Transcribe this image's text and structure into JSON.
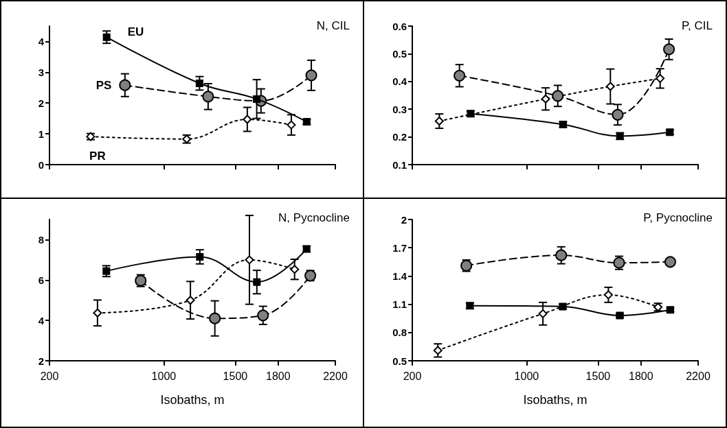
{
  "chart_data": [
    {
      "type": "line",
      "title": "N, CIL",
      "tick_labels": "y",
      "grid": false,
      "xlim": [
        200,
        2200
      ],
      "xticks": [
        200,
        1000,
        1500,
        1800,
        2200
      ],
      "ylim": [
        0,
        4.5
      ],
      "yticks": [
        0,
        1,
        2,
        3,
        4
      ],
      "series": [
        {
          "name": "EU",
          "color": "#000000",
          "marker": "square",
          "line_style": "solid",
          "x": [
            600,
            1250,
            1650,
            2000
          ],
          "values": [
            4.14,
            2.64,
            2.13,
            1.39
          ],
          "errors": [
            0.2,
            0.22,
            0.63,
            0.08
          ]
        },
        {
          "name": "PS",
          "color": "#808080",
          "marker": "circle",
          "line_style": "dashed",
          "x": [
            728,
            1310,
            1680,
            2032
          ],
          "values": [
            2.58,
            2.21,
            2.07,
            2.9
          ],
          "errors": [
            0.37,
            0.42,
            0.39,
            0.49
          ]
        },
        {
          "name": "PR",
          "color": "#ffffff",
          "marker": "diamond",
          "line_style": "dotted",
          "x": [
            488,
            1160,
            1584,
            1892
          ],
          "values": [
            0.91,
            0.83,
            1.47,
            1.29
          ],
          "errors": [
            0.1,
            0.13,
            0.39,
            0.33
          ]
        }
      ]
    },
    {
      "type": "line",
      "title": "P, CIL",
      "tick_labels": "y",
      "grid": false,
      "xlim": [
        200,
        2200
      ],
      "xticks": [
        200,
        1000,
        1500,
        1800,
        2200
      ],
      "ylim": [
        0.1,
        0.6
      ],
      "yticks": [
        0.1,
        0.2,
        0.3,
        0.4,
        0.5,
        0.6
      ],
      "series": [
        {
          "color": "#000000",
          "marker": "square",
          "line_style": "solid",
          "x": [
            608,
            1255,
            1653,
            2002
          ],
          "values": [
            0.284,
            0.245,
            0.203,
            0.217
          ],
          "errors": [
            0.01,
            0.01,
            0.012,
            0.008
          ]
        },
        {
          "color": "#808080",
          "marker": "circle",
          "line_style": "dashed",
          "x": [
            530,
            1218,
            1637,
            1996
          ],
          "values": [
            0.421,
            0.348,
            0.28,
            0.516
          ],
          "errors": [
            0.04,
            0.038,
            0.037,
            0.037
          ]
        },
        {
          "color": "#ffffff",
          "marker": "diamond",
          "line_style": "dotted",
          "x": [
            389,
            1133,
            1586,
            1934
          ],
          "values": [
            0.257,
            0.337,
            0.382,
            0.411
          ],
          "errors": [
            0.026,
            0.04,
            0.063,
            0.035
          ]
        }
      ]
    },
    {
      "type": "line",
      "title": "N, Pycnocline",
      "xlabel": "Isobaths, m",
      "grid": false,
      "xlim": [
        200,
        2200
      ],
      "xticks": [
        200,
        1000,
        1500,
        1800,
        2200
      ],
      "ylim": [
        2,
        9
      ],
      "yticks": [
        2,
        4,
        6,
        8
      ],
      "series": [
        {
          "color": "#000000",
          "marker": "square",
          "line_style": "solid",
          "x": [
            598,
            1252,
            1651,
            1999
          ],
          "values": [
            6.44,
            7.15,
            5.9,
            7.54
          ],
          "errors": [
            0.27,
            0.35,
            0.58,
            0.14
          ]
        },
        {
          "color": "#808080",
          "marker": "circle",
          "line_style": "dashed",
          "x": [
            838,
            1357,
            1694,
            2025
          ],
          "values": [
            5.97,
            4.1,
            4.25,
            6.22
          ],
          "errors": [
            0.29,
            0.87,
            0.45,
            0.25
          ]
        },
        {
          "color": "#ffffff",
          "marker": "diamond",
          "line_style": "dotted",
          "x": [
            536,
            1186,
            1599,
            1915
          ],
          "values": [
            4.37,
            5.0,
            7.0,
            6.53
          ],
          "errors": [
            0.64,
            0.93,
            2.2,
            0.5
          ]
        }
      ]
    },
    {
      "type": "line",
      "title": "P, Pycnocline",
      "xlabel": "Isobaths, m",
      "grid": false,
      "xlim": [
        200,
        2200
      ],
      "xticks": [
        200,
        1000,
        1500,
        1800,
        2200
      ],
      "ylim": [
        0.5,
        2
      ],
      "yticks": [
        0.5,
        0.8,
        1.1,
        1.4,
        1.7,
        2
      ],
      "series": [
        {
          "color": "#000000",
          "marker": "square",
          "line_style": "solid",
          "x": [
            603,
            1253,
            1652,
            2005
          ],
          "values": [
            1.084,
            1.076,
            0.98,
            1.04
          ],
          "errors": [
            0.03,
            0.025,
            0.02,
            0.02
          ]
        },
        {
          "color": "#808080",
          "marker": "circle",
          "line_style": "dashed",
          "x": [
            578,
            1242,
            1647,
            2005
          ],
          "values": [
            1.51,
            1.62,
            1.54,
            1.55
          ],
          "errors": [
            0.06,
            0.09,
            0.07,
            0.03
          ]
        },
        {
          "color": "#ffffff",
          "marker": "diamond",
          "line_style": "dotted",
          "x": [
            379,
            1114,
            1572,
            1919
          ],
          "values": [
            0.61,
            1.0,
            1.2,
            1.07
          ],
          "errors": [
            0.07,
            0.12,
            0.08,
            0.04
          ]
        }
      ]
    }
  ]
}
